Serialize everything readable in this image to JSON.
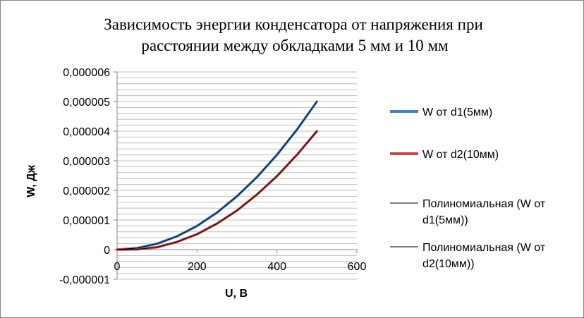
{
  "chart_data": {
    "type": "scatter",
    "title_lines": [
      "Зависимость энергии конденсатора от напряжения при",
      "расстоянии между обкладками 5 мм и 10 мм"
    ],
    "xlabel": "U, B",
    "ylabel": "W, Дж",
    "xlim": [
      0,
      600
    ],
    "ylim": [
      -1e-06,
      6e-06
    ],
    "x_ticks": [
      "0",
      "200",
      "400",
      "600"
    ],
    "y_ticks": [
      "-0,000001",
      "0",
      "0,000001",
      "0,000002",
      "0,000003",
      "0,000004",
      "0,000005",
      "0,000006"
    ],
    "y_tick_values": [
      -1e-06,
      0,
      1e-06,
      2e-06,
      3e-06,
      4e-06,
      5e-06,
      6e-06
    ],
    "x_tick_values": [
      0,
      200,
      400,
      600
    ],
    "grid": {
      "horizontal_minor": true,
      "vertical": false
    },
    "legend_position": "right",
    "series": [
      {
        "name": "W от d1(5мм)",
        "color": "#4a7ebb",
        "x": [
          0,
          50,
          100,
          150,
          200,
          250,
          300,
          350,
          400,
          450,
          500
        ],
        "y": [
          0,
          5e-08,
          2e-07,
          4.5e-07,
          8e-07,
          1.25e-06,
          1.8e-06,
          2.45e-06,
          3.2e-06,
          4.05e-06,
          5e-06
        ]
      },
      {
        "name": "W от d2(10мм)",
        "color": "#be4b48",
        "x": [
          0,
          50,
          100,
          150,
          200,
          250,
          300,
          350,
          400,
          450,
          500
        ],
        "y": [
          0,
          1e-08,
          8e-08,
          2.6e-07,
          5.2e-07,
          8.8e-07,
          1.32e-06,
          1.86e-06,
          2.48e-06,
          3.2e-06,
          4e-06
        ]
      }
    ],
    "trendlines": [
      {
        "name_lines": [
          "Полиномиальная (W от",
          "d1(5мм))"
        ],
        "color": "#000000",
        "follows_series": 0
      },
      {
        "name_lines": [
          "Полиномиальная (W от",
          "d2(10мм))"
        ],
        "color": "#000000",
        "follows_series": 1
      }
    ]
  }
}
